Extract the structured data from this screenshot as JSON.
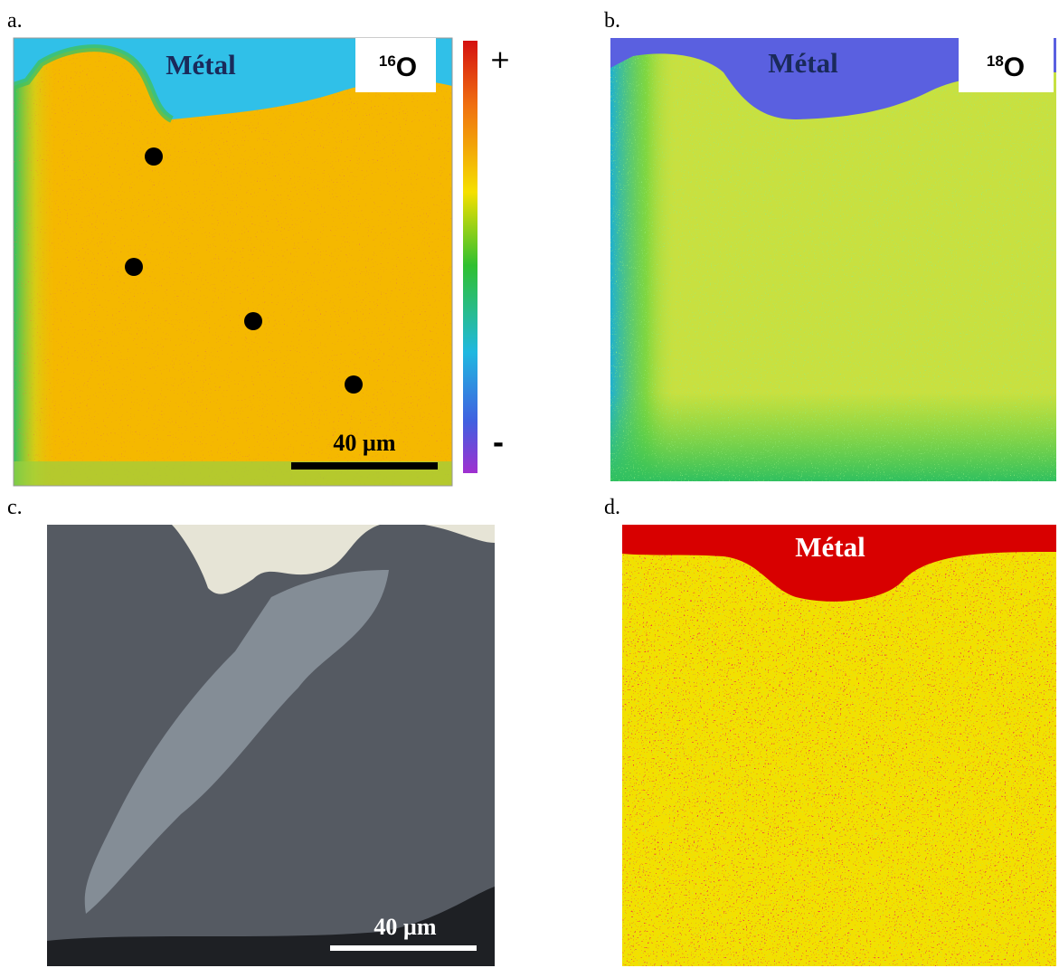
{
  "panels": [
    {
      "label": "a.",
      "region_label": "Métal",
      "isotope": {
        "mass": "16",
        "element": "O"
      },
      "scale_bar": "40 µm",
      "colorbar": {
        "max": "+",
        "min": "-"
      }
    },
    {
      "label": "b.",
      "region_label": "Métal",
      "isotope": {
        "mass": "18",
        "element": "O"
      }
    },
    {
      "label": "c.",
      "scale_bar": "40 µm"
    },
    {
      "label": "d.",
      "region_label": "Métal"
    }
  ]
}
